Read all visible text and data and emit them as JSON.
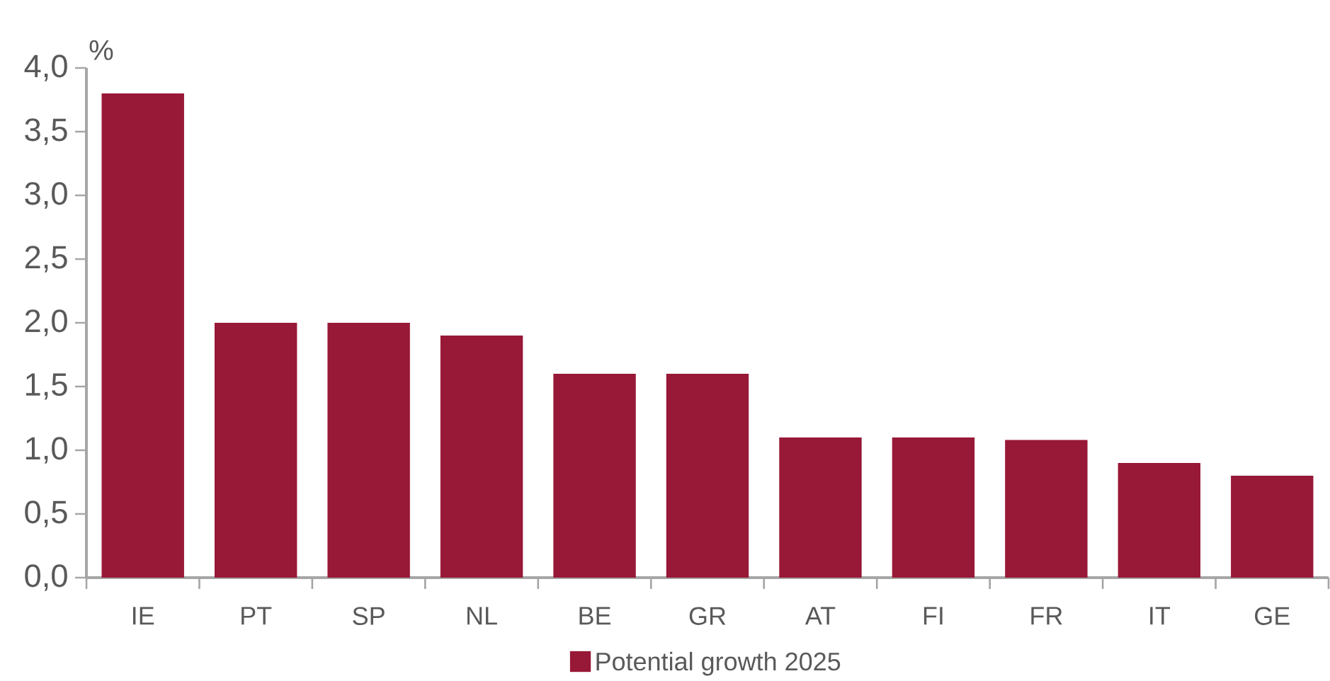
{
  "chart_data": {
    "type": "bar",
    "ylabel": "%",
    "categories": [
      "IE",
      "PT",
      "SP",
      "NL",
      "BE",
      "GR",
      "AT",
      "FI",
      "FR",
      "IT",
      "GE"
    ],
    "series": [
      {
        "name": "Potential growth 2025",
        "color": "#981837",
        "values": [
          3.8,
          2.0,
          2.0,
          1.9,
          1.6,
          1.6,
          1.1,
          1.1,
          1.08,
          0.9,
          0.8
        ]
      }
    ],
    "ylim": [
      0,
      4
    ],
    "yticks": [
      {
        "value": 0,
        "label": "0,0"
      },
      {
        "value": 0.5,
        "label": "0,5"
      },
      {
        "value": 1,
        "label": "1,0"
      },
      {
        "value": 1.5,
        "label": "1,5"
      },
      {
        "value": 2,
        "label": "2,0"
      },
      {
        "value": 2.5,
        "label": "2,5"
      },
      {
        "value": 3,
        "label": "3,0"
      },
      {
        "value": 3.5,
        "label": "3,5"
      },
      {
        "value": 4,
        "label": "4,0"
      }
    ],
    "grid": false,
    "legend": "bottom"
  }
}
